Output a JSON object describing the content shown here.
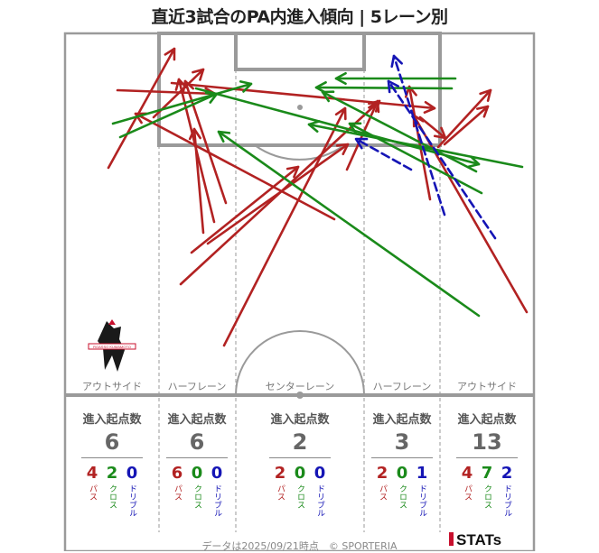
{
  "title": "直近3試合のPA内進入傾向 | 5レーン別",
  "colors": {
    "pass": "#b22222",
    "cross": "#1a8a1a",
    "dribble": "#1515b5",
    "pitch": "#9a9a9a"
  },
  "chart_data": {
    "type": "arrow-map",
    "lanes": [
      {
        "label": "アウトサイド",
        "header": "進入起点数",
        "total": "6",
        "pass": "4",
        "cross": "2",
        "dribble": "0"
      },
      {
        "label": "ハーフレーン",
        "header": "進入起点数",
        "total": "6",
        "pass": "6",
        "cross": "0",
        "dribble": "0"
      },
      {
        "label": "センターレーン",
        "header": "進入起点数",
        "total": "2",
        "pass": "2",
        "cross": "0",
        "dribble": "0"
      },
      {
        "label": "ハーフレーン",
        "header": "進入起点数",
        "total": "3",
        "pass": "2",
        "cross": "0",
        "dribble": "1"
      },
      {
        "label": "アウトサイド",
        "header": "進入起点数",
        "total": "13",
        "pass": "4",
        "cross": "7",
        "dribble": "2"
      }
    ],
    "type_labels": {
      "pass": "パス",
      "cross": "クロス",
      "dribble": "ドリブル"
    },
    "arrows": [
      {
        "type": "pass",
        "from": [
          120,
          186
        ],
        "to": [
          193,
          54
        ]
      },
      {
        "type": "pass",
        "from": [
          237,
          246
        ],
        "to": [
          198,
          88
        ]
      },
      {
        "type": "pass",
        "from": [
          250,
          225
        ],
        "to": [
          205,
          90
        ]
      },
      {
        "type": "pass",
        "from": [
          370,
          243
        ],
        "to": [
          150,
          126
        ]
      },
      {
        "type": "pass",
        "from": [
          130,
          100
        ],
        "to": [
          238,
          104
        ]
      },
      {
        "type": "pass",
        "from": [
          170,
          130
        ],
        "to": [
          225,
          77
        ]
      },
      {
        "type": "pass",
        "from": [
          225,
          258
        ],
        "to": [
          215,
          143
        ]
      },
      {
        "type": "pass",
        "from": [
          212,
          280
        ],
        "to": [
          330,
          185
        ]
      },
      {
        "type": "pass",
        "from": [
          230,
          270
        ],
        "to": [
          385,
          160
        ]
      },
      {
        "type": "pass",
        "from": [
          200,
          315
        ],
        "to": [
          420,
          112
        ]
      },
      {
        "type": "pass",
        "from": [
          248,
          383
        ],
        "to": [
          382,
          120
        ]
      },
      {
        "type": "pass",
        "from": [
          384,
          188
        ],
        "to": [
          418,
          112
        ]
      },
      {
        "type": "pass",
        "from": [
          476,
          221
        ],
        "to": [
          453,
          96
        ]
      },
      {
        "type": "pass",
        "from": [
          485,
          163
        ],
        "to": [
          543,
          100
        ]
      },
      {
        "type": "pass",
        "from": [
          492,
          160
        ],
        "to": [
          540,
          118
        ]
      },
      {
        "type": "pass",
        "from": [
          583,
          346
        ],
        "to": [
          458,
          128
        ]
      },
      {
        "type": "pass",
        "from": [
          465,
          130
        ],
        "to": [
          493,
          153
        ]
      },
      {
        "type": "pass",
        "from": [
          190,
          92
        ],
        "to": [
          481,
          120
        ]
      },
      {
        "type": "cross",
        "from": [
          125,
          137
        ],
        "to": [
          278,
          93
        ]
      },
      {
        "type": "cross",
        "from": [
          133,
          152
        ],
        "to": [
          240,
          104
        ]
      },
      {
        "type": "cross",
        "from": [
          504,
          87
        ],
        "to": [
          372,
          87
        ]
      },
      {
        "type": "cross",
        "from": [
          500,
          98
        ],
        "to": [
          350,
          97
        ]
      },
      {
        "type": "cross",
        "from": [
          527,
          190
        ],
        "to": [
          357,
          102
        ]
      },
      {
        "type": "cross",
        "from": [
          578,
          185
        ],
        "to": [
          342,
          138
        ]
      },
      {
        "type": "cross",
        "from": [
          530,
          350
        ],
        "to": [
          242,
          146
        ]
      },
      {
        "type": "cross",
        "from": [
          533,
          214
        ],
        "to": [
          387,
          137
        ]
      },
      {
        "type": "cross",
        "from": [
          217,
          98
        ],
        "to": [
          530,
          182
        ]
      },
      {
        "type": "dribble",
        "from": [
          548,
          264
        ],
        "to": [
          430,
          90
        ]
      },
      {
        "type": "dribble",
        "from": [
          492,
          238
        ],
        "to": [
          436,
          62
        ]
      },
      {
        "type": "dribble",
        "from": [
          455,
          188
        ],
        "to": [
          394,
          154
        ]
      }
    ]
  },
  "footer": "データは2025/09/21時点　© SPORTERIA",
  "stats_logo": "STATs",
  "club_emblem": "ROASSO KUMAMOTO"
}
